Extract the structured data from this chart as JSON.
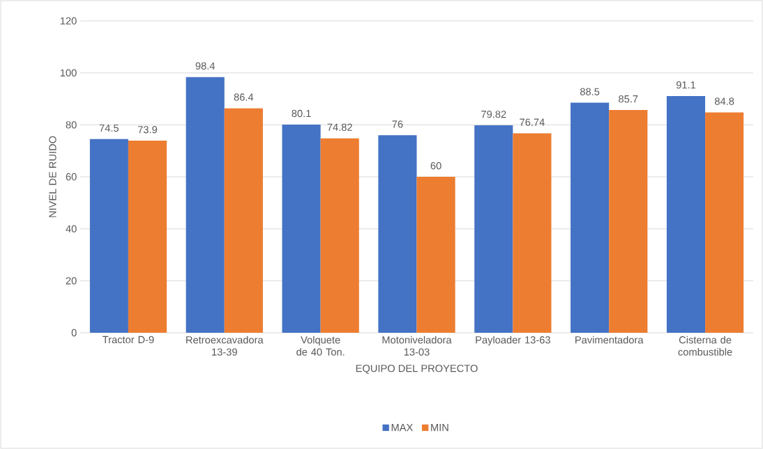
{
  "chart_data": {
    "type": "bar",
    "xlabel": "EQUIPO DEL PROYECTO",
    "ylabel": "NIVEL DE RUIDO",
    "categories": [
      "Tractor D-9",
      "Retroexcavadora 13-39",
      "Volquete de 40 Ton.",
      "Motoniveladora 13-03",
      "Payloader 13-63",
      "Pavimentadora",
      "Cisterna de combustible"
    ],
    "series": [
      {
        "name": "MAX",
        "color": "#4472c4",
        "values": [
          74.5,
          98.4,
          80.1,
          76,
          79.82,
          88.5,
          91.1
        ]
      },
      {
        "name": "MIN",
        "color": "#ed7d31",
        "values": [
          73.9,
          86.4,
          74.82,
          60,
          76.74,
          85.7,
          84.8
        ]
      }
    ],
    "ylim": [
      0,
      120
    ],
    "yticks": [
      0,
      20,
      40,
      60,
      80,
      100,
      120
    ],
    "grid": "y",
    "legend": "bottom",
    "data_labels": true
  }
}
